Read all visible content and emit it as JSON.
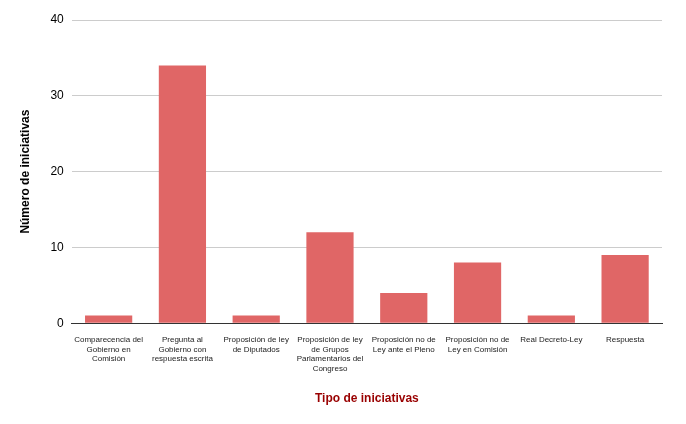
{
  "chart_data": {
    "type": "bar",
    "x_label": "Tipo de iniciativas",
    "y_label": "Número de iniciativas",
    "categories": [
      "Comparecencia del Gobierno en Comisión",
      "Pregunta al Gobierno con respuesta escrita",
      "Proposición de ley de Diputados",
      "Proposición de ley de Grupos Parlamentarios del Congreso",
      "Proposición no de Ley ante el Pleno",
      "Proposición no de Ley en Comisión",
      "Real Decreto-Ley",
      "Respuesta"
    ],
    "values": [
      1,
      34,
      1,
      12,
      4,
      8,
      1,
      9
    ],
    "color": "#e06666",
    "ylim": [
      0,
      40
    ],
    "yticks": [
      0,
      10,
      20,
      30,
      40
    ],
    "grid": true
  }
}
